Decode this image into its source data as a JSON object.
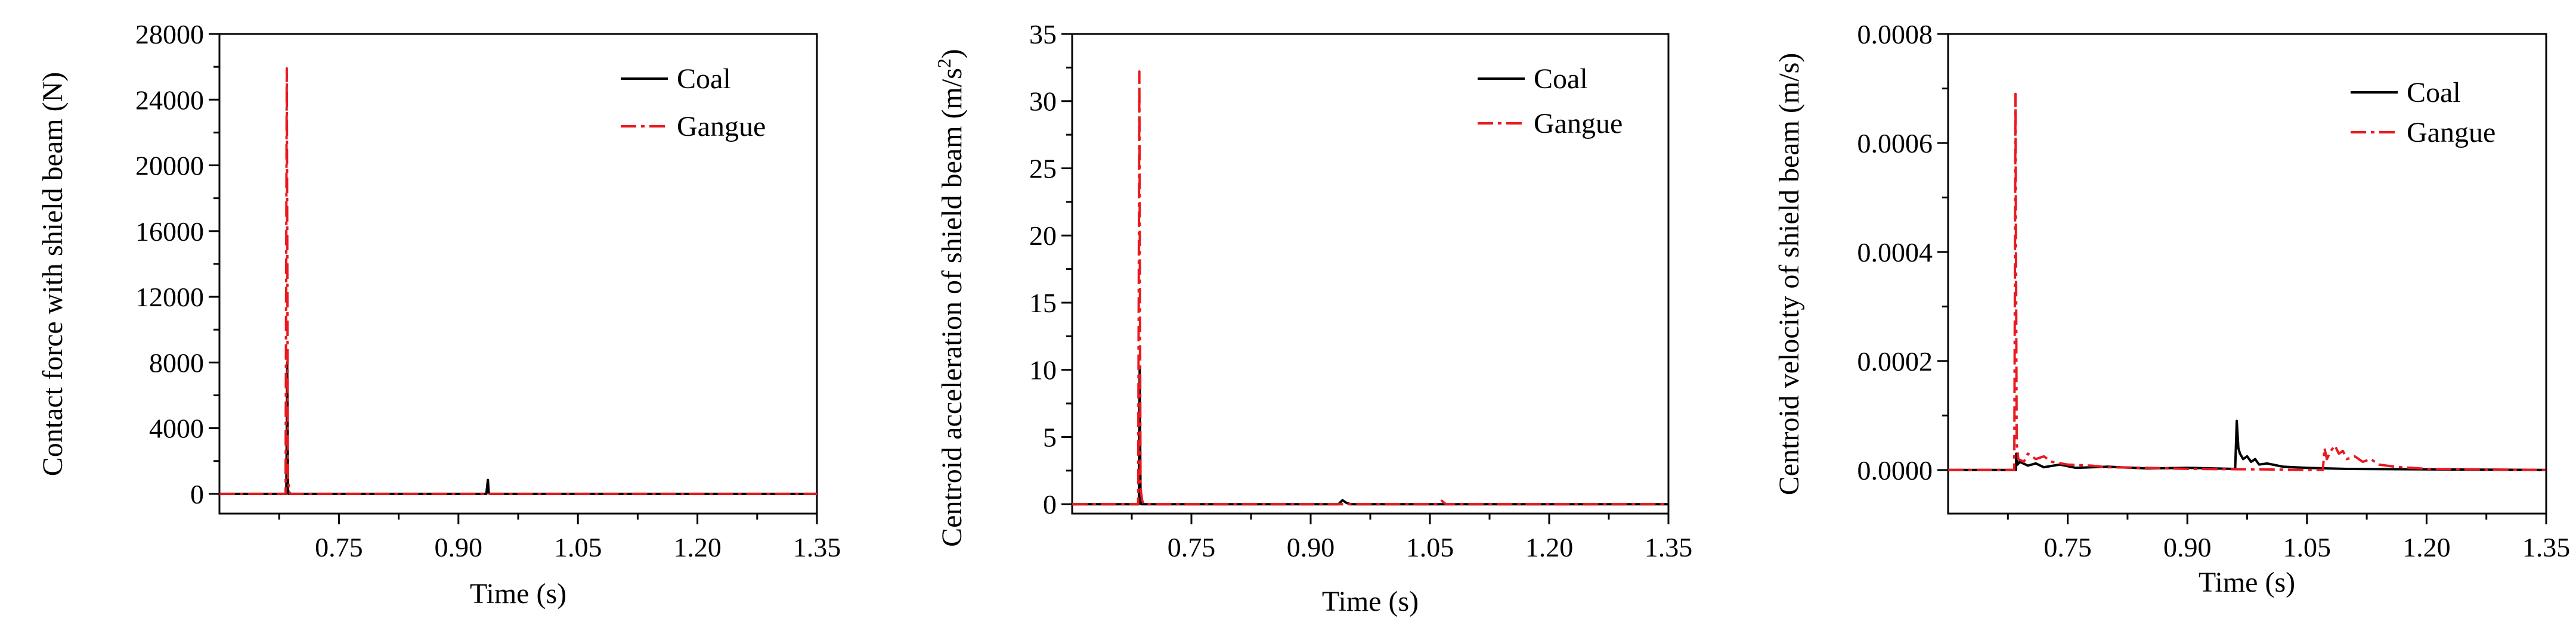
{
  "chart_data": [
    {
      "type": "line",
      "xlabel": "Time (s)",
      "ylabel": "Contact force with shield beam (N)",
      "xlim": [
        0.6,
        1.35
      ],
      "ylim": [
        -1200,
        28000
      ],
      "xticks": [
        0.75,
        0.9,
        1.05,
        1.2,
        1.35
      ],
      "xtick_labels": [
        "0.75",
        "0.90",
        "1.05",
        "1.20",
        "1.35"
      ],
      "yticks": [
        0,
        4000,
        8000,
        12000,
        16000,
        20000,
        24000,
        28000
      ],
      "ytick_labels": [
        "0",
        "4000",
        "8000",
        "12000",
        "16000",
        "20000",
        "24000",
        "28000"
      ],
      "legend_position": "top-right",
      "grid": false,
      "series": [
        {
          "name": "Coal",
          "color": "#000000",
          "style": "solid",
          "x": [
            0.6,
            0.684,
            0.685,
            0.686,
            0.687,
            0.935,
            0.937,
            0.938,
            0.94,
            1.35
          ],
          "y": [
            0,
            0,
            8000,
            300,
            0,
            0,
            850,
            60,
            0,
            0
          ]
        },
        {
          "name": "Gangue",
          "color": "#e8191f",
          "style": "dashdot",
          "x": [
            0.6,
            0.683,
            0.6845,
            0.686,
            0.6875,
            0.689,
            1.35
          ],
          "y": [
            0,
            0,
            25900,
            900,
            200,
            0,
            0
          ]
        }
      ]
    },
    {
      "type": "line",
      "xlabel": "Time (s)",
      "ylabel": "Centroid acceleration of shield beam (m/s",
      "ylabel_sup": "2",
      "ylabel_close": ")",
      "xlim": [
        0.6,
        1.35
      ],
      "ylim": [
        -0.7,
        35
      ],
      "xticks": [
        0.75,
        0.9,
        1.05,
        1.2,
        1.35
      ],
      "xtick_labels": [
        "0.75",
        "0.90",
        "1.05",
        "1.20",
        "1.35"
      ],
      "yticks": [
        0,
        5,
        10,
        15,
        20,
        25,
        30,
        35
      ],
      "ytick_labels": [
        "0",
        "5",
        "10",
        "15",
        "20",
        "25",
        "30",
        "35"
      ],
      "legend_position": "top-right",
      "grid": false,
      "series": [
        {
          "name": "Coal",
          "color": "#000000",
          "style": "solid",
          "x": [
            0.6,
            0.684,
            0.685,
            0.686,
            0.687,
            0.935,
            0.94,
            0.945,
            0.95,
            1.35
          ],
          "y": [
            0,
            0,
            10,
            0.5,
            0,
            0,
            0.3,
            0.1,
            0,
            0
          ]
        },
        {
          "name": "Gangue",
          "color": "#e8191f",
          "style": "dashdot",
          "x": [
            0.6,
            0.683,
            0.6845,
            0.686,
            0.688,
            0.69,
            1.06,
            1.065,
            1.07,
            1.35
          ],
          "y": [
            0,
            0,
            32.2,
            1.2,
            0.3,
            0,
            0,
            0.25,
            0,
            0
          ]
        }
      ]
    },
    {
      "type": "line",
      "xlabel": "Time (s)",
      "ylabel": "Centroid velocity of shield beam (m/s)",
      "xlim": [
        0.6,
        1.35
      ],
      "ylim": [
        -8e-05,
        0.0008
      ],
      "xticks": [
        0.75,
        0.9,
        1.05,
        1.2,
        1.35
      ],
      "xtick_labels": [
        "0.75",
        "0.90",
        "1.05",
        "1.20",
        "1.35"
      ],
      "yticks": [
        0,
        0.0002,
        0.0004,
        0.0006,
        0.0008
      ],
      "ytick_labels": [
        "0.0000",
        "0.0002",
        "0.0004",
        "0.0006",
        "0.0008"
      ],
      "legend_position": "top-right",
      "grid": false,
      "series": [
        {
          "name": "Coal",
          "color": "#000000",
          "style": "solid",
          "x": [
            0.6,
            0.685,
            0.6855,
            0.687,
            0.69,
            0.7,
            0.71,
            0.72,
            0.74,
            0.76,
            0.8,
            0.85,
            0.9,
            0.96,
            0.962,
            0.964,
            0.966,
            0.97,
            0.975,
            0.98,
            0.985,
            0.99,
            1.0,
            1.02,
            1.05,
            1.1,
            1.35
          ],
          "y": [
            0,
            0,
            3e-05,
            1e-05,
            1.5e-05,
            8e-06,
            1.2e-05,
            5e-06,
            1e-05,
            4e-06,
            6e-06,
            3e-06,
            4e-06,
            2e-06,
            9e-05,
            4e-05,
            3e-05,
            2e-05,
            2.5e-05,
            1.5e-05,
            2e-05,
            1e-05,
            1.2e-05,
            6e-06,
            4e-06,
            2e-06,
            0
          ]
        },
        {
          "name": "Gangue",
          "color": "#e8191f",
          "style": "dashdot",
          "x": [
            0.6,
            0.683,
            0.6845,
            0.686,
            0.688,
            0.695,
            0.7,
            0.71,
            0.72,
            0.73,
            0.75,
            0.78,
            0.8,
            0.85,
            0.9,
            1.0,
            1.05,
            1.07,
            1.072,
            1.075,
            1.08,
            1.085,
            1.09,
            1.095,
            1.1,
            1.11,
            1.12,
            1.13,
            1.14,
            1.16,
            1.2,
            1.35
          ],
          "y": [
            0,
            0,
            0.00069,
            5e-05,
            2e-05,
            1.5e-05,
            3e-05,
            2e-05,
            2.5e-05,
            1.5e-05,
            1e-05,
            8e-06,
            5e-06,
            4e-06,
            2e-06,
            1e-06,
            0,
            0,
            4e-05,
            2e-05,
            3.5e-05,
            4.5e-05,
            3e-05,
            3.5e-05,
            2e-05,
            2.5e-05,
            1.5e-05,
            2e-05,
            1e-05,
            6e-06,
            2e-06,
            0
          ]
        }
      ]
    }
  ]
}
